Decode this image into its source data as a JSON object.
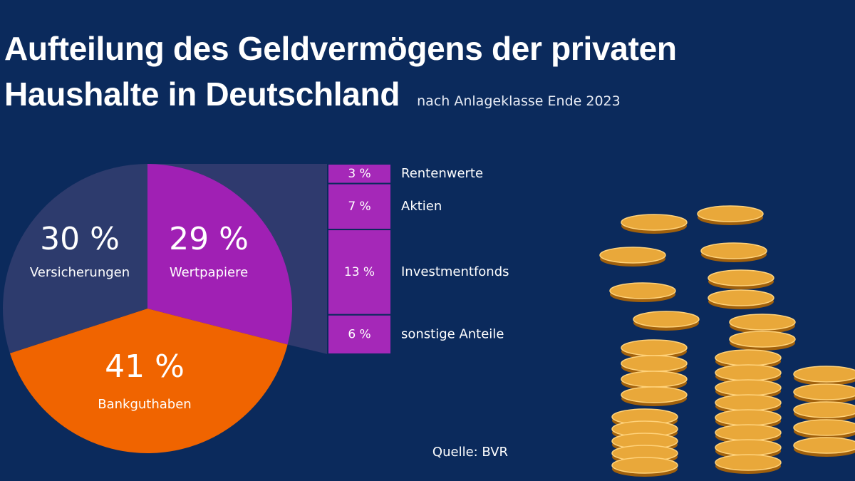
{
  "chart_data": [
    {
      "type": "pie",
      "title": "Aufteilung des Geldvermögens der privaten Haushalte in Deutschland",
      "subtitle": "nach Anlageklasse Ende 2023",
      "source": "Quelle: BVR",
      "categories": [
        "Wertpapiere",
        "Bankguthaben",
        "Versicherungen"
      ],
      "values": [
        29,
        41,
        30
      ],
      "value_labels": [
        "29 %",
        "41 %",
        "30 %"
      ],
      "colors": [
        "#a020b4",
        "#f06400",
        "#2d3b6d"
      ]
    },
    {
      "type": "stacked-bar",
      "categories": [
        "Rentenwerte",
        "Aktien",
        "Investmentfonds",
        "sonstige Anteile"
      ],
      "values": [
        3,
        7,
        13,
        6
      ],
      "value_labels": [
        "3 %",
        "7 %",
        "13 %",
        "6 %"
      ],
      "color": "#a528b8"
    }
  ]
}
